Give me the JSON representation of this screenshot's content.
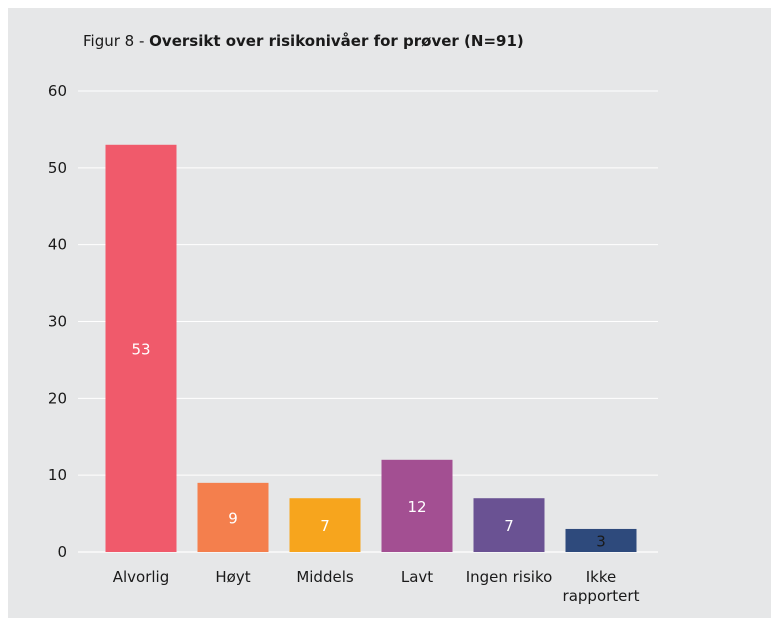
{
  "chart_data": {
    "type": "bar",
    "title_prefix": "Figur 8 - ",
    "title": "Oversikt over risikonivåer for prøver (N=91)",
    "xlabel": "",
    "ylabel": "",
    "ylim": [
      0,
      60
    ],
    "yticks": [
      0,
      10,
      20,
      30,
      40,
      50,
      60
    ],
    "grid": true,
    "categories": [
      [
        "Alvorlig"
      ],
      [
        "Høyt"
      ],
      [
        "Middels"
      ],
      [
        "Lavt"
      ],
      [
        "Ingen risiko"
      ],
      [
        "Ikke",
        "rapportert"
      ]
    ],
    "values": [
      53,
      9,
      7,
      12,
      7,
      3
    ],
    "data_labels": [
      "53",
      "9",
      "7",
      "12",
      "7",
      "3"
    ],
    "colors": [
      "#f05a6b",
      "#f47f4d",
      "#f7a51d",
      "#a34f92",
      "#6a5293",
      "#2e4a7c"
    ],
    "label_colors": [
      "#ffffff",
      "#ffffff",
      "#ffffff",
      "#ffffff",
      "#ffffff",
      "#1a1a1a"
    ]
  }
}
